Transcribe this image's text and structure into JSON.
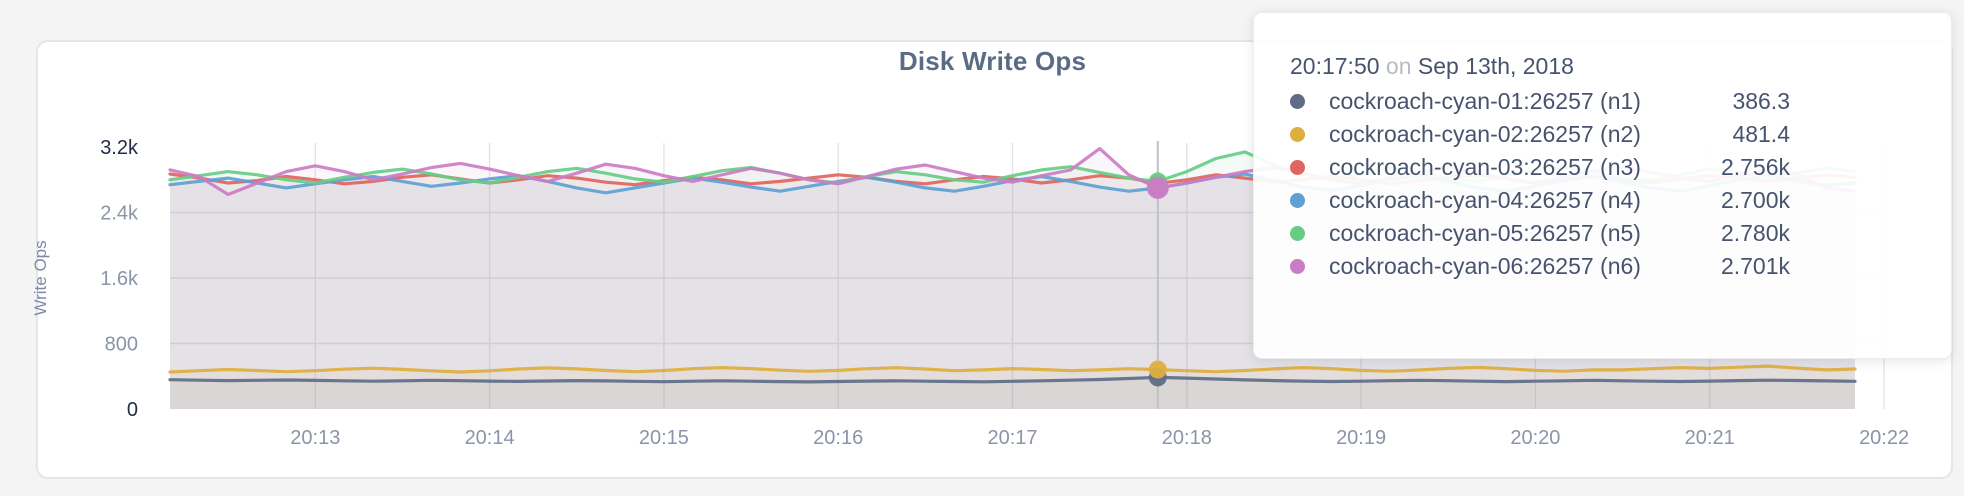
{
  "chart_data": {
    "type": "line",
    "title": "Disk Write Ops",
    "ylabel": "Write Ops",
    "ylim": [
      0,
      3200
    ],
    "grid": true,
    "x_start_time": "20:12:10",
    "x_interval_seconds": 10,
    "x_tick_labels": [
      "20:13",
      "20:14",
      "20:15",
      "20:16",
      "20:17",
      "20:18",
      "20:19",
      "20:20",
      "20:21",
      "20:22"
    ],
    "x_first_tick_index": 5,
    "x_tick_step": 6,
    "y_ticks": [
      {
        "label": "0",
        "value": 0,
        "emphasis": true
      },
      {
        "label": "800",
        "value": 800,
        "emphasis": false
      },
      {
        "label": "1.6k",
        "value": 1600,
        "emphasis": false
      },
      {
        "label": "2.4k",
        "value": 2400,
        "emphasis": false
      },
      {
        "label": "3.2k",
        "value": 3200,
        "emphasis": true
      }
    ],
    "hover": {
      "index": 34,
      "time": "20:17:50"
    },
    "series": [
      {
        "name": "cockroach-cyan-01:26257 (n1)",
        "short": "n1",
        "color": "#5f6c87",
        "values": [
          358,
          352,
          347,
          350,
          354,
          349,
          344,
          340,
          345,
          350,
          346,
          341,
          337,
          342,
          347,
          343,
          338,
          334,
          339,
          344,
          340,
          335,
          331,
          336,
          341,
          345,
          340,
          336,
          332,
          338,
          345,
          352,
          360,
          372,
          386.3,
          378,
          366,
          355,
          347,
          341,
          336,
          340,
          346,
          351,
          346,
          340,
          335,
          339,
          345,
          350,
          345,
          340,
          336,
          341,
          347,
          352,
          348,
          343,
          338
        ]
      },
      {
        "name": "cockroach-cyan-02:26257 (n2)",
        "short": "n2",
        "color": "#deae3f",
        "values": [
          452,
          468,
          482,
          470,
          455,
          468,
          486,
          498,
          484,
          466,
          452,
          466,
          488,
          502,
          490,
          470,
          456,
          470,
          492,
          506,
          494,
          474,
          460,
          472,
          492,
          504,
          488,
          468,
          478,
          494,
          482,
          468,
          478,
          492,
          481.4,
          468,
          456,
          470,
          490,
          506,
          492,
          472,
          462,
          476,
          496,
          508,
          492,
          472,
          462,
          478,
          478,
          492,
          506,
          496,
          510,
          524,
          500,
          478,
          488
        ]
      },
      {
        "name": "cockroach-cyan-03:26257 (n3)",
        "short": "n3",
        "color": "#e06560",
        "values": [
          2870,
          2820,
          2760,
          2790,
          2840,
          2800,
          2750,
          2780,
          2830,
          2860,
          2810,
          2760,
          2800,
          2850,
          2820,
          2770,
          2740,
          2790,
          2830,
          2800,
          2750,
          2780,
          2820,
          2860,
          2830,
          2780,
          2750,
          2800,
          2840,
          2810,
          2760,
          2800,
          2850,
          2820,
          2756,
          2800,
          2860,
          2820,
          2770,
          2800,
          2840,
          2800,
          2750,
          2790,
          2830,
          2860,
          2810,
          2760,
          2800,
          2840,
          2800,
          2760,
          2810,
          2850,
          2820,
          2780,
          2820,
          2860,
          2830
        ]
      },
      {
        "name": "cockroach-cyan-04:26257 (n4)",
        "short": "n4",
        "color": "#5e9fd4",
        "values": [
          2740,
          2780,
          2820,
          2760,
          2700,
          2750,
          2800,
          2840,
          2780,
          2720,
          2760,
          2810,
          2850,
          2780,
          2700,
          2640,
          2700,
          2760,
          2820,
          2770,
          2710,
          2660,
          2720,
          2780,
          2830,
          2770,
          2700,
          2660,
          2720,
          2790,
          2840,
          2780,
          2710,
          2660,
          2700,
          2760,
          2830,
          2870,
          2790,
          2710,
          2670,
          2730,
          2800,
          2850,
          2780,
          2700,
          2660,
          2720,
          2790,
          2840,
          2770,
          2700,
          2660,
          2730,
          2800,
          2850,
          2790,
          2730,
          2760
        ]
      },
      {
        "name": "cockroach-cyan-05:26257 (n5)",
        "short": "n5",
        "color": "#67cd85",
        "values": [
          2800,
          2850,
          2900,
          2860,
          2800,
          2760,
          2830,
          2890,
          2930,
          2870,
          2800,
          2760,
          2830,
          2900,
          2940,
          2880,
          2810,
          2770,
          2840,
          2910,
          2950,
          2880,
          2800,
          2760,
          2840,
          2900,
          2860,
          2800,
          2770,
          2850,
          2920,
          2960,
          2890,
          2820,
          2780,
          2900,
          3060,
          3140,
          2980,
          2870,
          2810,
          2870,
          2940,
          2890,
          2820,
          2780,
          2850,
          2920,
          2960,
          2890,
          2820,
          2790,
          2860,
          2930,
          2890,
          2830,
          2880,
          2940,
          2900
        ]
      },
      {
        "name": "cockroach-cyan-06:26257 (n6)",
        "short": "n6",
        "color": "#cc7cc4",
        "values": [
          2920,
          2840,
          2620,
          2760,
          2900,
          2970,
          2900,
          2800,
          2870,
          2950,
          3000,
          2930,
          2850,
          2780,
          2880,
          2990,
          2940,
          2850,
          2780,
          2860,
          2940,
          2880,
          2800,
          2750,
          2840,
          2930,
          2980,
          2900,
          2820,
          2770,
          2850,
          2920,
          3180,
          2860,
          2701,
          2760,
          2830,
          2900,
          2950,
          2880,
          2800,
          2750,
          2830,
          2900,
          2950,
          2880,
          2810,
          2760,
          2840,
          2910,
          2960,
          2890,
          2820,
          2780,
          2850,
          2920,
          2870,
          2700,
          2660
        ]
      }
    ]
  },
  "tooltip": {
    "time": "20:17:50",
    "conjunction": "on",
    "date": "Sep 13th, 2018",
    "rows": [
      {
        "label": "cockroach-cyan-01:26257 (n1)",
        "value": "386.3",
        "color": "#5f6c87"
      },
      {
        "label": "cockroach-cyan-02:26257 (n2)",
        "value": "481.4",
        "color": "#deae3f"
      },
      {
        "label": "cockroach-cyan-03:26257 (n3)",
        "value": "2.756k",
        "color": "#e06560"
      },
      {
        "label": "cockroach-cyan-04:26257 (n4)",
        "value": "2.700k",
        "color": "#5e9fd4"
      },
      {
        "label": "cockroach-cyan-05:26257 (n5)",
        "value": "2.780k",
        "color": "#67cd85"
      },
      {
        "label": "cockroach-cyan-06:26257 (n6)",
        "value": "2.701k",
        "color": "#cc7cc4"
      }
    ]
  }
}
